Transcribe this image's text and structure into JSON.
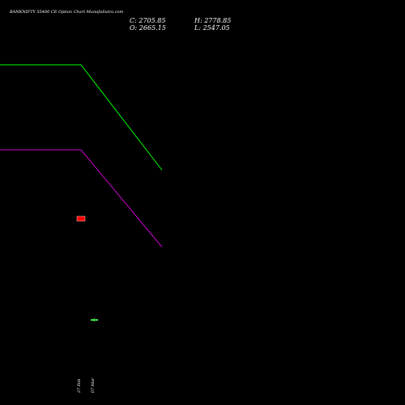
{
  "header": {
    "title": "BANKNIFTY 55400  CE Option  Chart MunafaSutra.com",
    "close_label": "C: 2705.85",
    "high_label": "H: 2778.85",
    "open_label": "O: 2665.15",
    "low_label": "L: 2547.05"
  },
  "chart_data": {
    "type": "line",
    "title": "BANKNIFTY 55400  CE Option  Chart MunafaSutra.com",
    "x": [
      "",
      "27 Feb",
      "07 Mar"
    ],
    "ylim": [
      0,
      100
    ],
    "grid": false,
    "series": [
      {
        "color": "#00ff00",
        "values": [
          84,
          84,
          58
        ]
      },
      {
        "color": "#cc00cc",
        "values": [
          63,
          63,
          39
        ]
      }
    ],
    "markers": [
      {
        "x_index": 1,
        "value": 46,
        "color": "#ff0000",
        "shape": "box"
      },
      {
        "x_index": 2,
        "value": 21,
        "color": "#44dd44",
        "shape": "tick"
      }
    ],
    "date_labels": [
      "27 Feb",
      "07 Mar"
    ],
    "ohlc": {
      "close": 2705.85,
      "high": 2778.85,
      "open": 2665.15,
      "low": 2547.05
    }
  }
}
